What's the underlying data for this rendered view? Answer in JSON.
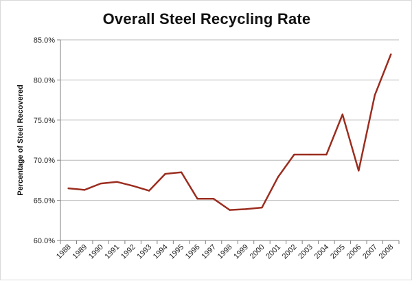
{
  "chart_data": {
    "type": "line",
    "title": "Overall Steel Recycling Rate",
    "xlabel": "",
    "ylabel": "Percentage of Steel Recovered",
    "ylim": [
      60,
      85
    ],
    "y_ticks": [
      60,
      65,
      70,
      75,
      80,
      85
    ],
    "y_tick_labels": [
      "60.0%",
      "65.0%",
      "70.0%",
      "75.0%",
      "80.0%",
      "85.0%"
    ],
    "categories": [
      "1988",
      "1989",
      "1990",
      "1991",
      "1992",
      "1993",
      "1994",
      "1995",
      "1996",
      "1997",
      "1998",
      "1999",
      "2000",
      "2001",
      "2002",
      "2003",
      "2004",
      "2005",
      "2006",
      "2007",
      "2008"
    ],
    "series": [
      {
        "name": "Overall Steel Recycling Rate",
        "color": "#9b2d1f",
        "values": [
          66.5,
          66.3,
          67.1,
          67.3,
          66.8,
          66.2,
          68.3,
          68.5,
          65.2,
          65.2,
          63.8,
          63.9,
          64.1,
          67.9,
          70.7,
          70.7,
          70.7,
          75.7,
          68.7,
          78.1,
          83.2
        ]
      }
    ],
    "grid": true,
    "legend": "none"
  }
}
